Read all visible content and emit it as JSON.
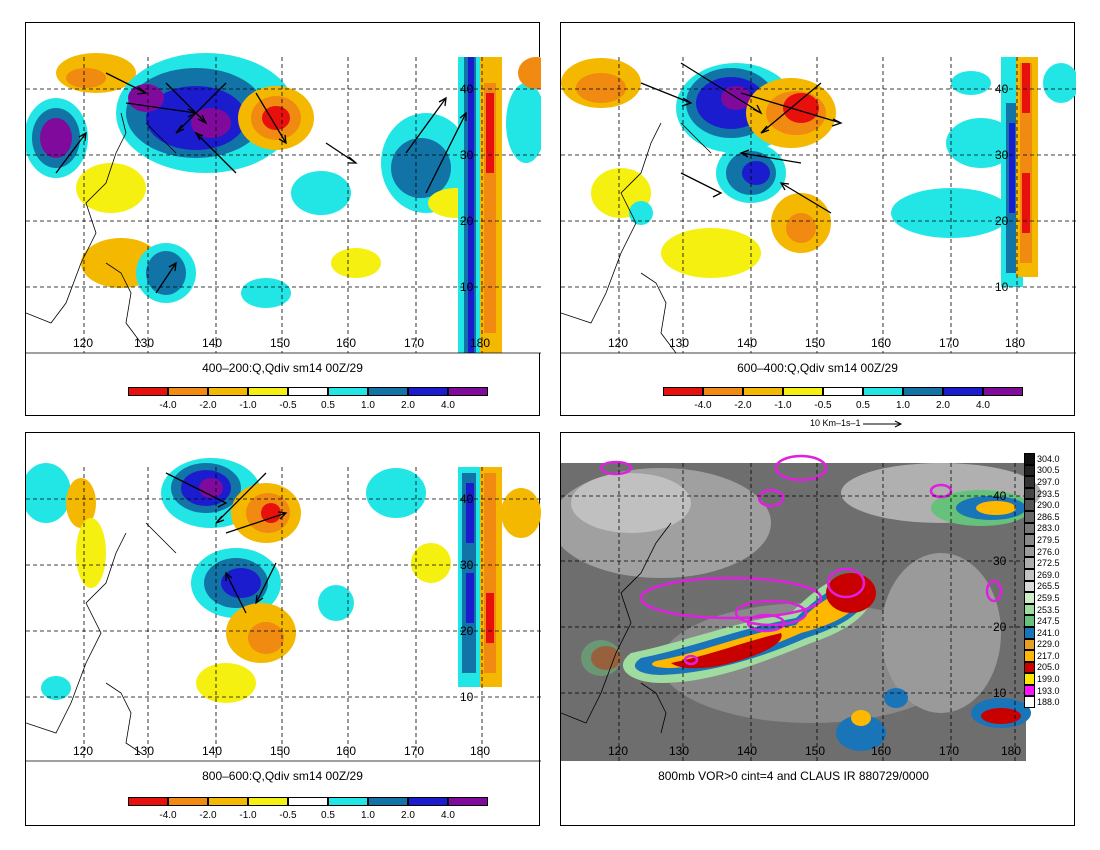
{
  "panels": [
    {
      "title": "400–200:Q,Qdiv sm14 00Z/29"
    },
    {
      "title": "600–400:Q,Qdiv sm14 00Z/29"
    },
    {
      "title": "800–600:Q,Qdiv sm14 00Z/29"
    },
    {
      "title": "800mb VOR>0 cint=4 and CLAUS IR 880729/0000"
    }
  ],
  "lon_labels": [
    "120",
    "130",
    "140",
    "150",
    "160",
    "170",
    "180"
  ],
  "lat_labels": [
    "10",
    "20",
    "30",
    "40"
  ],
  "qdiv_colorbar": {
    "colors": [
      "#e8100c",
      "#f08a10",
      "#f5b800",
      "#f5f010",
      "#ffffff",
      "#22e6e6",
      "#1173a6",
      "#1c1ccf",
      "#800a9c"
    ],
    "labels": [
      "-4.0",
      "-2.0",
      "-1.0",
      "-0.5",
      "0.5",
      "1.0",
      "2.0",
      "4.0"
    ]
  },
  "vector_reference": "10 Km–1s–1",
  "ir_colorbar": {
    "labels": [
      "304.0",
      "300.5",
      "297.0",
      "293.5",
      "290.0",
      "286.5",
      "283.0",
      "279.5",
      "276.0",
      "272.5",
      "269.0",
      "265.5",
      "259.5",
      "253.5",
      "247.5",
      "241.0",
      "229.0",
      "217.0",
      "205.0",
      "199.0",
      "193.0",
      "188.0"
    ],
    "colors": [
      "#111111",
      "#222222",
      "#333333",
      "#444444",
      "#555555",
      "#666666",
      "#777777",
      "#888888",
      "#9a9a9a",
      "#adadad",
      "#c2c2c2",
      "#d9d9d9",
      "#cdeec9",
      "#9fdc9f",
      "#66c27a",
      "#1a74b8",
      "#e8a020",
      "#ffb800",
      "#c80000",
      "#ffe800",
      "#ff10ff",
      "#ffffff"
    ]
  },
  "vorticity_color": "#e020e0"
}
